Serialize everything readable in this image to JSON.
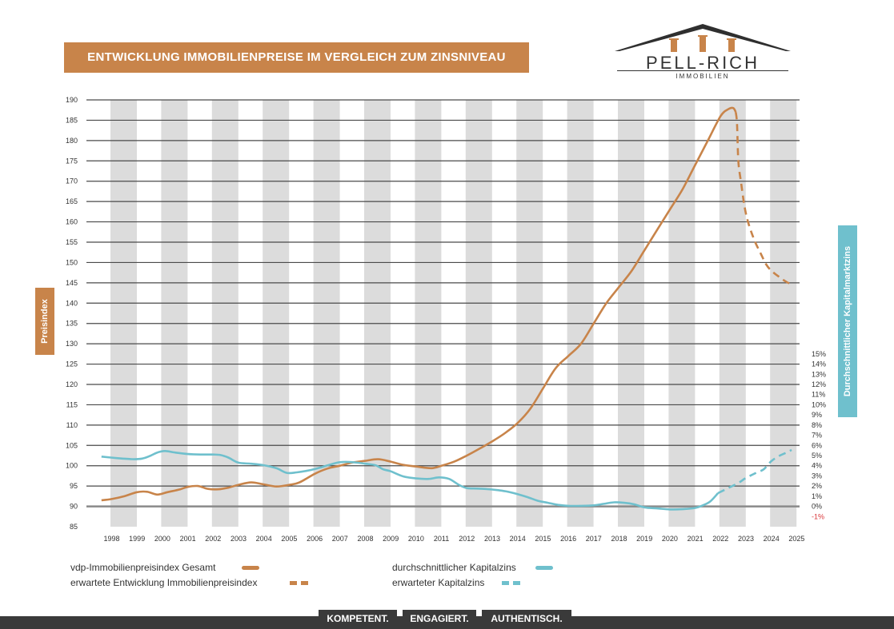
{
  "title": "ENTWICKLUNG IMMOBILIENPREISE IM VERGLEICH ZUM ZINSNIVEAU",
  "logo": {
    "name": "PELL-RICH",
    "sub": "IMMOBILIEN"
  },
  "left_axis_title": "Preisindex",
  "right_axis_title": "Durchschnittlicher Kapitalmarktzins",
  "legend": {
    "price_actual": "vdp-Immobilienpreisindex Gesamt",
    "price_expected": "erwartete Entwicklung Immobilienpreisindex",
    "rate_actual": "durchschnittlicher Kapitalzins",
    "rate_expected": "erwarteter Kapitalzins"
  },
  "footer_tags": [
    "KOMPETENT.",
    "ENGAGIERT.",
    "AUTHENTISCH."
  ],
  "colors": {
    "price": "#c8844a",
    "rate": "#6fc0cd",
    "band": "#dcdcdc",
    "grid": "#4a4a4a",
    "negative": "#d9373a"
  },
  "chart_data": {
    "type": "line",
    "years": [
      "1998",
      "1999",
      "2000",
      "2001",
      "2002",
      "2003",
      "2004",
      "2005",
      "2006",
      "2007",
      "2008",
      "2009",
      "2010",
      "2011",
      "2012",
      "2013",
      "2014",
      "2015",
      "2016",
      "2017",
      "2018",
      "2019",
      "2020",
      "2021",
      "2022",
      "2023",
      "2024",
      "2025"
    ],
    "y_left": {
      "label": "Preisindex",
      "min": 85,
      "max": 190,
      "step": 5
    },
    "y_right": {
      "label": "Durchschnittlicher Kapitalmarktzins",
      "min": -1,
      "max": 15,
      "step": 1,
      "unit": "%"
    },
    "series": [
      {
        "name": "vdp-Immobilienpreisindex Gesamt",
        "axis": "left",
        "style": "solid",
        "points": [
          [
            1997.6,
            91.5
          ],
          [
            1998,
            91.8
          ],
          [
            1998.5,
            92.5
          ],
          [
            1999,
            93.5
          ],
          [
            1999.4,
            93.6
          ],
          [
            1999.8,
            92.9
          ],
          [
            2000.2,
            93.5
          ],
          [
            2000.7,
            94.2
          ],
          [
            2001,
            94.8
          ],
          [
            2001.4,
            95
          ],
          [
            2001.8,
            94.3
          ],
          [
            2002.2,
            94.2
          ],
          [
            2002.6,
            94.6
          ],
          [
            2003,
            95.3
          ],
          [
            2003.5,
            95.9
          ],
          [
            2004,
            95.4
          ],
          [
            2004.5,
            94.9
          ],
          [
            2005,
            95.3
          ],
          [
            2005.4,
            95.9
          ],
          [
            2006,
            98
          ],
          [
            2006.5,
            99.3
          ],
          [
            2007,
            100
          ],
          [
            2007.5,
            100.8
          ],
          [
            2008,
            101.2
          ],
          [
            2008.5,
            101.6
          ],
          [
            2009,
            101
          ],
          [
            2009.5,
            100.2
          ],
          [
            2010,
            99.8
          ],
          [
            2010.6,
            99.4
          ],
          [
            2011,
            100
          ],
          [
            2011.5,
            101
          ],
          [
            2012,
            102.5
          ],
          [
            2012.5,
            104.2
          ],
          [
            2013,
            106
          ],
          [
            2013.5,
            108
          ],
          [
            2014,
            110.5
          ],
          [
            2014.5,
            114
          ],
          [
            2015,
            119
          ],
          [
            2015.5,
            124
          ],
          [
            2016,
            127
          ],
          [
            2016.5,
            130
          ],
          [
            2017,
            135
          ],
          [
            2017.5,
            140
          ],
          [
            2018,
            144
          ],
          [
            2018.5,
            148
          ],
          [
            2019,
            153
          ],
          [
            2019.5,
            158
          ],
          [
            2020,
            163
          ],
          [
            2020.5,
            168
          ],
          [
            2021,
            174
          ],
          [
            2021.5,
            180
          ],
          [
            2022,
            186
          ],
          [
            2022.3,
            187.7
          ],
          [
            2022.5,
            188
          ],
          [
            2022.6,
            187
          ]
        ]
      },
      {
        "name": "erwartete Entwicklung Immobilienpreisindex",
        "axis": "left",
        "style": "dashed",
        "points": [
          [
            2022.6,
            187
          ],
          [
            2022.65,
            184
          ],
          [
            2022.7,
            175
          ],
          [
            2022.8,
            170
          ],
          [
            2023,
            162
          ],
          [
            2023.3,
            156
          ],
          [
            2023.6,
            152
          ],
          [
            2023.8,
            149.5
          ],
          [
            2024,
            148
          ],
          [
            2024.3,
            146.5
          ],
          [
            2024.6,
            145.2
          ],
          [
            2024.75,
            144.8
          ]
        ]
      },
      {
        "name": "durchschnittlicher Kapitalzins",
        "axis": "right",
        "style": "solid",
        "points": [
          [
            1997.6,
            4.9
          ],
          [
            1998.2,
            4.75
          ],
          [
            1998.8,
            4.65
          ],
          [
            1999.2,
            4.7
          ],
          [
            1999.5,
            4.95
          ],
          [
            1999.8,
            5.3
          ],
          [
            2000.1,
            5.45
          ],
          [
            2000.5,
            5.3
          ],
          [
            2001,
            5.15
          ],
          [
            2001.5,
            5.1
          ],
          [
            2002,
            5.1
          ],
          [
            2002.3,
            5.05
          ],
          [
            2002.6,
            4.8
          ],
          [
            2003,
            4.3
          ],
          [
            2003.5,
            4.2
          ],
          [
            2004,
            4.05
          ],
          [
            2004.5,
            3.75
          ],
          [
            2004.9,
            3.3
          ],
          [
            2005.3,
            3.35
          ],
          [
            2005.8,
            3.55
          ],
          [
            2006.2,
            3.8
          ],
          [
            2006.6,
            4.1
          ],
          [
            2007,
            4.35
          ],
          [
            2007.5,
            4.35
          ],
          [
            2008,
            4.2
          ],
          [
            2008.4,
            4.05
          ],
          [
            2008.7,
            3.65
          ],
          [
            2009,
            3.45
          ],
          [
            2009.5,
            2.95
          ],
          [
            2010,
            2.75
          ],
          [
            2010.5,
            2.7
          ],
          [
            2010.9,
            2.85
          ],
          [
            2011.3,
            2.7
          ],
          [
            2011.7,
            2.1
          ],
          [
            2012,
            1.8
          ],
          [
            2012.4,
            1.75
          ],
          [
            2012.8,
            1.7
          ],
          [
            2013.2,
            1.6
          ],
          [
            2013.6,
            1.45
          ],
          [
            2014,
            1.2
          ],
          [
            2014.4,
            0.9
          ],
          [
            2014.8,
            0.55
          ],
          [
            2015.2,
            0.35
          ],
          [
            2015.6,
            0.15
          ],
          [
            2016,
            0.05
          ],
          [
            2016.5,
            0.05
          ],
          [
            2017,
            0.1
          ],
          [
            2017.4,
            0.25
          ],
          [
            2017.8,
            0.4
          ],
          [
            2018.2,
            0.35
          ],
          [
            2018.6,
            0.2
          ],
          [
            2019,
            -0.1
          ],
          [
            2019.5,
            -0.2
          ],
          [
            2020,
            -0.3
          ],
          [
            2020.5,
            -0.28
          ],
          [
            2021,
            -0.15
          ],
          [
            2021.3,
            0.1
          ],
          [
            2021.6,
            0.5
          ],
          [
            2021.9,
            1.3
          ]
        ]
      },
      {
        "name": "erwarteter Kapitalzins",
        "axis": "right",
        "style": "dashed",
        "points": [
          [
            2021.9,
            1.3
          ],
          [
            2022.3,
            1.8
          ],
          [
            2022.7,
            2.3
          ],
          [
            2023,
            2.8
          ],
          [
            2023.4,
            3.3
          ],
          [
            2023.7,
            3.65
          ],
          [
            2024,
            4.45
          ],
          [
            2024.3,
            4.95
          ],
          [
            2024.6,
            5.3
          ],
          [
            2024.8,
            5.55
          ]
        ]
      }
    ]
  }
}
